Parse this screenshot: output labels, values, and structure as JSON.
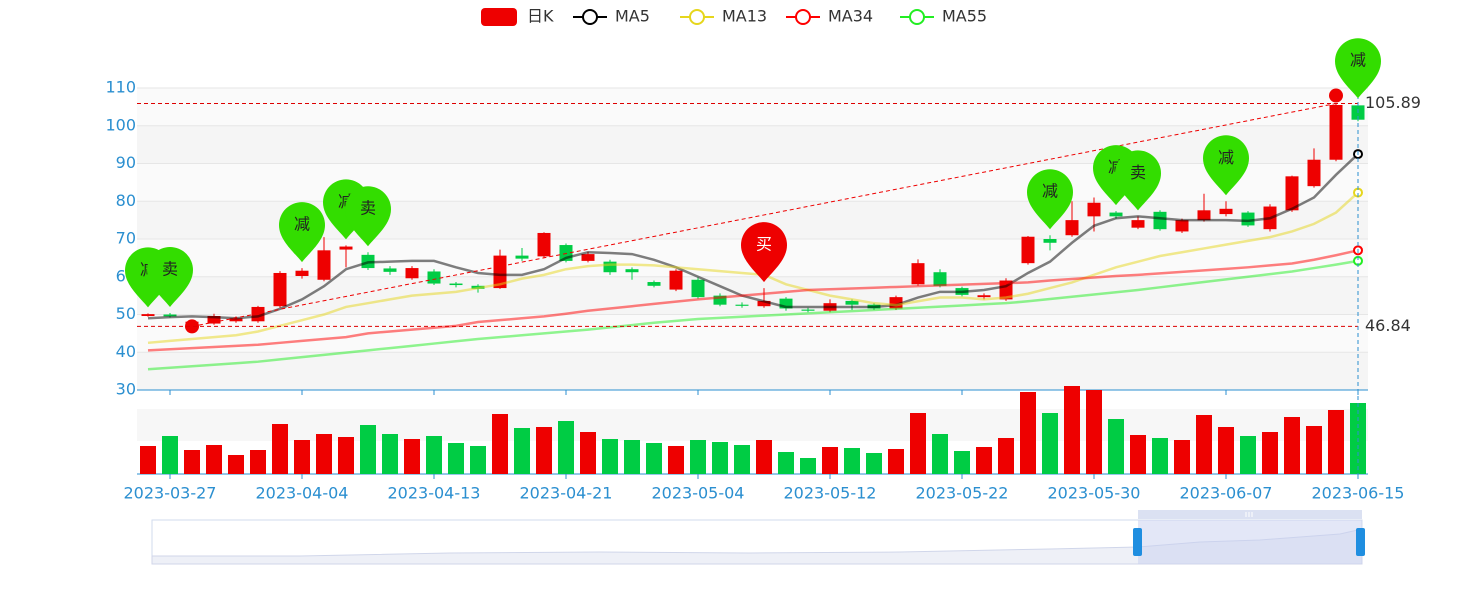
{
  "chart_data": {
    "type": "candlestick",
    "categories": [
      null,
      "2023-03-27",
      null,
      null,
      null,
      null,
      null,
      "2023-04-04",
      null,
      null,
      null,
      null,
      null,
      "2023-04-13",
      null,
      null,
      null,
      null,
      null,
      "2023-04-21",
      null,
      null,
      null,
      null,
      null,
      "2023-05-04",
      null,
      null,
      null,
      null,
      null,
      "2023-05-12",
      null,
      null,
      null,
      null,
      null,
      "2023-05-22",
      null,
      null,
      null,
      null,
      null,
      "2023-05-30",
      null,
      null,
      null,
      null,
      null,
      "2023-06-07",
      null,
      null,
      null,
      null,
      null,
      "2023-06-15"
    ],
    "ylim": [
      30,
      110
    ],
    "yticks": [
      30,
      40,
      50,
      60,
      70,
      80,
      90,
      100,
      110
    ],
    "up_color": "#ee0000",
    "down_color": "#00cc44",
    "series": [
      {
        "name": "日K",
        "color": "#ee0000",
        "values": [
          [
            49.6,
            50.1,
            49.4,
            50.3
          ],
          [
            50,
            49.5,
            49.2,
            50.4
          ],
          [
            47.6,
            48.1,
            46.84,
            48.5
          ],
          [
            47.6,
            49.6,
            47.3,
            50.2
          ],
          [
            48.2,
            49,
            47.8,
            49.5
          ],
          [
            48.2,
            52,
            47.8,
            52.3
          ],
          [
            52.2,
            61,
            51.8,
            61.5
          ],
          [
            60.2,
            61.6,
            59.5,
            62.3
          ],
          [
            59.2,
            67,
            58.8,
            70.5
          ],
          [
            67.2,
            68,
            62.5,
            68.3
          ],
          [
            65.8,
            62.3,
            61.8,
            66.5
          ],
          [
            62.2,
            61.3,
            60.5,
            62.8
          ],
          [
            59.6,
            62.3,
            59.2,
            62.8
          ],
          [
            61.4,
            58.2,
            57.8,
            62
          ],
          [
            58.2,
            57.8,
            57.2,
            58.6
          ],
          [
            57.6,
            56.8,
            55.8,
            58
          ],
          [
            57,
            65.6,
            56.8,
            67.2
          ],
          [
            65.6,
            64.8,
            64.2,
            67.6
          ],
          [
            65.4,
            71.6,
            65,
            71.8
          ],
          [
            68.4,
            64.2,
            63.8,
            68.8
          ],
          [
            64.2,
            66,
            63.8,
            66.6
          ],
          [
            64,
            61.2,
            60.5,
            64.5
          ],
          [
            62,
            61.2,
            59.2,
            62.5
          ],
          [
            58.6,
            57.6,
            57.2,
            59
          ],
          [
            56.6,
            61.6,
            56.2,
            62
          ],
          [
            59.2,
            54.6,
            54.2,
            59.8
          ],
          [
            55,
            52.6,
            52.2,
            55.6
          ],
          [
            52.6,
            52.3,
            51.8,
            53.2
          ],
          [
            52.2,
            53.6,
            51.8,
            57
          ],
          [
            54.2,
            51.6,
            51,
            54.6
          ],
          [
            51.3,
            51,
            50.6,
            51.8
          ],
          [
            51,
            53,
            50.6,
            54
          ],
          [
            53.6,
            52.6,
            51.2,
            54
          ],
          [
            52.6,
            51.6,
            51.2,
            53
          ],
          [
            51.6,
            54.6,
            51.2,
            55
          ],
          [
            58,
            63.6,
            57.6,
            64.6
          ],
          [
            61.2,
            57.6,
            57.2,
            62
          ],
          [
            57,
            55.2,
            54.8,
            57.4
          ],
          [
            54.6,
            55.1,
            54,
            55.6
          ],
          [
            54,
            59,
            53.6,
            59.6
          ],
          [
            63.6,
            70.6,
            63.2,
            70.8
          ],
          [
            70,
            69,
            67,
            71
          ],
          [
            71,
            75,
            70.6,
            80
          ],
          [
            76,
            79.6,
            72,
            81
          ],
          [
            77,
            76,
            75.4,
            77.4
          ],
          [
            73,
            75,
            72.6,
            76
          ],
          [
            77.2,
            72.6,
            72.2,
            77.6
          ],
          [
            72,
            75,
            71.6,
            75.4
          ],
          [
            75,
            77.6,
            74.6,
            82
          ],
          [
            76.6,
            78,
            76,
            80
          ],
          [
            77,
            73.6,
            73.2,
            77.4
          ],
          [
            72.6,
            78.6,
            72,
            79.2
          ],
          [
            77.6,
            86.6,
            77.2,
            86.8
          ],
          [
            84,
            91,
            83.6,
            94
          ],
          [
            91,
            105.5,
            90.6,
            105.89
          ],
          [
            105.4,
            101.6,
            101.2,
            105.7
          ]
        ]
      },
      {
        "name": "MA5",
        "color": "#000000",
        "values": [
          49,
          49.3,
          49.5,
          49.3,
          49,
          49.5,
          51.5,
          54,
          57.5,
          62,
          63.8,
          64,
          64.2,
          64.2,
          62.5,
          61,
          60.5,
          60.5,
          62,
          65,
          66.5,
          66.3,
          66,
          64.5,
          62.5,
          60,
          57.5,
          55,
          53.5,
          52,
          52,
          52,
          52,
          52,
          52.5,
          54.5,
          56,
          56,
          56.5,
          57.5,
          61,
          64,
          69,
          73.5,
          75.5,
          76,
          75.5,
          75,
          75,
          75,
          74.8,
          75.5,
          78,
          81,
          87,
          92.5
        ]
      },
      {
        "name": "MA13",
        "color": "#e6d61c",
        "values": [
          42.5,
          43,
          43.5,
          44,
          44.5,
          45.5,
          47,
          48.5,
          50,
          52,
          53,
          54,
          55,
          55.5,
          56,
          57,
          58,
          59.5,
          60.5,
          62,
          62.8,
          63.2,
          63.2,
          63,
          62.5,
          62,
          61.5,
          61,
          60.5,
          58,
          56.5,
          55,
          54,
          53,
          52.5,
          53.5,
          54.5,
          54.5,
          54,
          54.5,
          55.5,
          57,
          58.5,
          60.5,
          62.5,
          64,
          65.5,
          66.5,
          67.5,
          68.5,
          69.5,
          70.5,
          72,
          74,
          77,
          82.3
        ]
      },
      {
        "name": "MA34",
        "color": "#ff0000",
        "values": [
          40.5,
          40.8,
          41.1,
          41.4,
          41.7,
          42,
          42.5,
          43,
          43.5,
          44,
          45,
          45.5,
          46,
          46.5,
          47,
          48,
          48.5,
          49,
          49.5,
          50.2,
          51,
          51.6,
          52.2,
          52.8,
          53.4,
          54,
          54.5,
          55,
          55.5,
          56,
          56.5,
          56.7,
          56.9,
          57.1,
          57.3,
          57.5,
          57.7,
          57.9,
          58.1,
          58.3,
          58.5,
          59,
          59.4,
          59.8,
          60.2,
          60.5,
          60.9,
          61.3,
          61.7,
          62.1,
          62.5,
          63,
          63.5,
          64.5,
          65.7,
          67
        ]
      },
      {
        "name": "MA55",
        "color": "#22ee22",
        "values": [
          35.5,
          35.9,
          36.3,
          36.7,
          37.1,
          37.5,
          38.1,
          38.7,
          39.3,
          39.9,
          40.5,
          41.1,
          41.7,
          42.3,
          42.9,
          43.5,
          44,
          44.5,
          45,
          45.5,
          46,
          46.6,
          47.2,
          47.8,
          48.3,
          48.8,
          49.1,
          49.4,
          49.7,
          50,
          50.3,
          50.6,
          50.9,
          51.2,
          51.5,
          51.8,
          52.1,
          52.4,
          52.7,
          53,
          53.5,
          54.1,
          54.7,
          55.3,
          55.9,
          56.5,
          57.2,
          57.9,
          58.6,
          59.3,
          60,
          60.7,
          61.4,
          62.3,
          63.2,
          64.2
        ]
      }
    ],
    "volume": [
      28,
      38,
      24,
      29,
      19,
      24,
      50,
      34,
      40,
      37,
      49,
      40,
      35,
      38,
      31,
      28,
      60,
      46,
      47,
      53,
      42,
      35,
      34,
      31,
      28,
      34,
      32,
      29,
      34,
      22,
      16,
      27,
      26,
      21,
      25,
      61,
      40,
      23,
      27,
      36,
      82,
      61,
      88,
      84,
      55,
      39,
      36,
      34,
      59,
      47,
      38,
      42,
      57,
      48,
      64,
      71
    ],
    "mark_lines": [
      105.89,
      46.84
    ],
    "signals": [
      {
        "label": "减",
        "color": "#33dd00"
      },
      {
        "label": "卖",
        "color": "#33dd00"
      },
      null,
      null,
      null,
      null,
      null,
      {
        "label": "减",
        "color": "#33dd00"
      },
      null,
      {
        "label": "减",
        "color": "#33dd00"
      },
      {
        "label": "卖",
        "color": "#33dd00"
      },
      null,
      null,
      null,
      null,
      null,
      null,
      null,
      null,
      null,
      null,
      null,
      null,
      null,
      null,
      null,
      null,
      null,
      {
        "label": "买",
        "color": "#ee0000"
      },
      null,
      null,
      null,
      null,
      null,
      null,
      null,
      null,
      null,
      null,
      null,
      null,
      {
        "label": "减",
        "color": "#33dd00"
      },
      null,
      null,
      {
        "label": "减",
        "color": "#33dd00"
      },
      {
        "label": "卖",
        "color": "#33dd00"
      },
      null,
      null,
      null,
      {
        "label": "减",
        "color": "#33dd00"
      },
      null,
      null,
      null,
      null,
      null,
      {
        "label": "减",
        "color": "#33dd00"
      }
    ],
    "grid": true
  }
}
